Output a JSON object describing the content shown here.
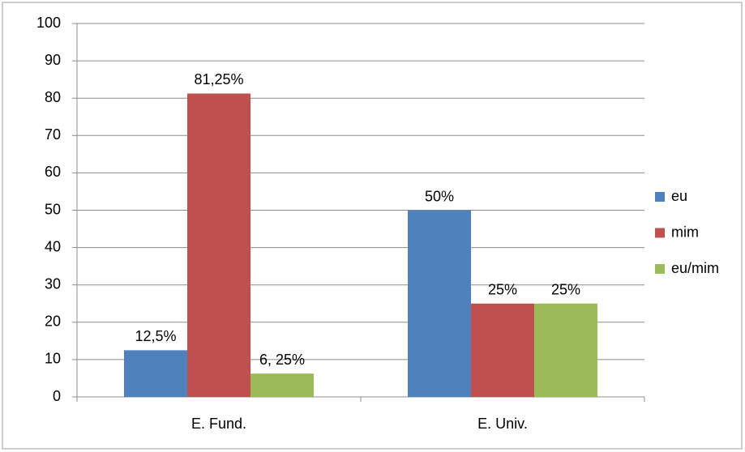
{
  "chart_data": {
    "type": "bar",
    "categories": [
      "E. Fund.",
      "E. Univ."
    ],
    "series": [
      {
        "name": "eu",
        "color": "#4f81bd",
        "values": [
          12.5,
          50
        ],
        "value_labels": [
          "12,5%",
          "50%"
        ]
      },
      {
        "name": "mim",
        "color": "#c0504d",
        "values": [
          81.25,
          25
        ],
        "value_labels": [
          "81,25%",
          "25%"
        ]
      },
      {
        "name": "eu/mim",
        "color": "#9bbb59",
        "values": [
          6.25,
          25
        ],
        "value_labels": [
          "6, 25%",
          "25%"
        ]
      }
    ],
    "ylim": [
      0,
      100
    ],
    "yticks": [
      0,
      10,
      20,
      30,
      40,
      50,
      60,
      70,
      80,
      90,
      100
    ],
    "grid": true,
    "legend": "right"
  }
}
